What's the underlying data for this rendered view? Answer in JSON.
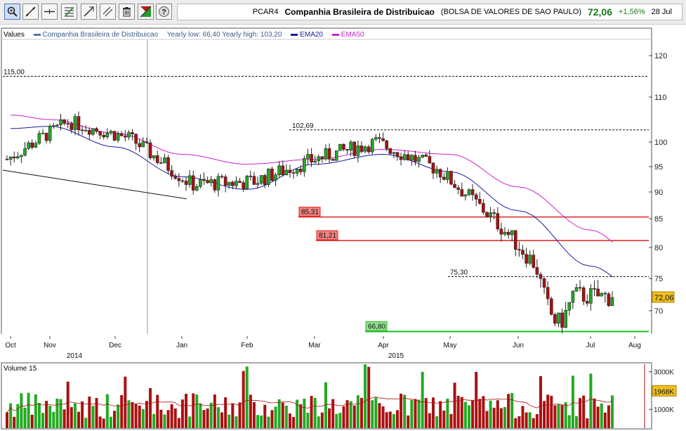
{
  "toolbar": {
    "buttons": [
      {
        "name": "zoom-tool-button",
        "icon": "magnifier-icon"
      },
      {
        "name": "line-tool-button",
        "icon": "trend-line-icon"
      },
      {
        "name": "hline-tool-button",
        "icon": "horizontal-line-icon"
      },
      {
        "name": "fib-tool-button",
        "icon": "fibonacci-icon"
      },
      {
        "name": "channel-tool-button",
        "icon": "channel-icon"
      },
      {
        "name": "parallel-tool-button",
        "icon": "parallel-lines-icon"
      },
      {
        "name": "delete-tool-button",
        "icon": "trash-icon"
      },
      {
        "name": "chart-type-button",
        "icon": "chart-type-icon"
      },
      {
        "name": "help-button",
        "icon": "help-icon"
      }
    ]
  },
  "quote": {
    "ticker": "PCAR4",
    "name": "Companhia Brasileira de Distribuicao",
    "exchange": "(BOLSA DE VALORES DE SAO PAULO)",
    "price": "72,06",
    "change": "+1,56%",
    "date": "28 Jul"
  },
  "legend": {
    "values_label": "Values",
    "series_label": "Companhia Brasileira de Distribuicao",
    "yearly_range": "Yearly low: 66,40 Yearly high: 103,20",
    "ema20_label": "EMA20",
    "ema50_label": "EMA50"
  },
  "volume_label": "Volume 15",
  "colors": {
    "up": "#22aa22",
    "down": "#aa1111",
    "ema20": "#1a1aa0",
    "ema50": "#cc22cc",
    "support_line": "#22bb22",
    "resistance_line": "#dd2222",
    "price_tag": "#f0c020"
  },
  "chart_data": [
    {
      "type": "candlestick",
      "y_axis_ticks": [
        70,
        75,
        80,
        85,
        90,
        95,
        100,
        110,
        120
      ],
      "ylim": [
        66,
        123
      ],
      "x_tick_labels": [
        "Oct",
        "Nov",
        "Dec",
        "Jan",
        "Feb",
        "Mar",
        "Apr",
        "May",
        "Jun",
        "Jul",
        "Aug"
      ],
      "year_labels": [
        "2014",
        "2015"
      ],
      "last_price_tag": "72,06",
      "levels": [
        {
          "label": "115,00",
          "value": 115.0,
          "style": "dashed"
        },
        {
          "label": "102,69",
          "value": 102.69,
          "style": "dashed"
        },
        {
          "label": "85,31",
          "value": 85.31,
          "style": "red"
        },
        {
          "label": "81,21",
          "value": 81.21,
          "style": "red"
        },
        {
          "label": "75,30",
          "value": 75.3,
          "style": "dashed"
        },
        {
          "label": "66,80",
          "value": 66.8,
          "style": "green"
        }
      ],
      "trend_line": {
        "from": [
          "Oct 1",
          94.3
        ],
        "to": [
          "Jan 9",
          88.7
        ]
      },
      "series": [
        {
          "name": "Companhia Brasileira de Distribuicao",
          "monthly_closes": [
            96.5,
            104.5,
            100.8,
            91.5,
            92.0,
            96.5,
            100.0,
            94.5,
            84.0,
            72.5,
            72.06
          ]
        },
        {
          "name": "EMA20",
          "monthly_values": [
            103.0,
            103.5,
            99.0,
            93.0,
            90.5,
            95.5,
            97.5,
            94.0,
            86.5,
            77.0,
            73.5
          ]
        },
        {
          "name": "EMA50",
          "monthly_values": [
            106.0,
            105.0,
            102.0,
            97.5,
            95.5,
            96.5,
            98.5,
            97.5,
            91.0,
            83.0,
            78.8
          ]
        }
      ]
    },
    {
      "type": "bar",
      "title": "Volume 15",
      "y_axis_ticks": [
        "3000K",
        "1000K"
      ],
      "last_value_tag": "1968K",
      "ylim": [
        0,
        3400
      ]
    }
  ]
}
